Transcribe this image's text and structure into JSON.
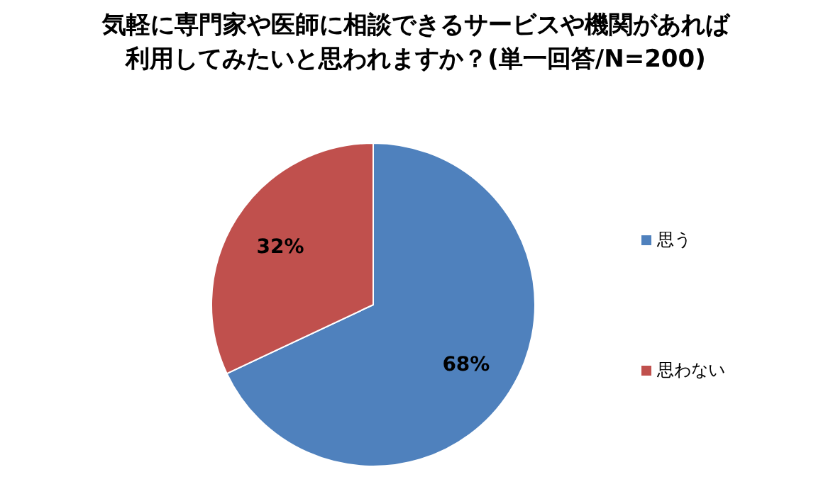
{
  "chart_data": {
    "type": "pie",
    "title": "気軽に専門家や医師に相談できるサービスや機関があれば利用してみたいと思われますか？(単一回答/N=200)",
    "categories": [
      "思う",
      "思わない"
    ],
    "values": [
      68,
      32
    ],
    "colors": [
      "#4f81bd",
      "#c0504d"
    ],
    "value_labels": [
      "68%",
      "32%"
    ],
    "legend": "right"
  }
}
